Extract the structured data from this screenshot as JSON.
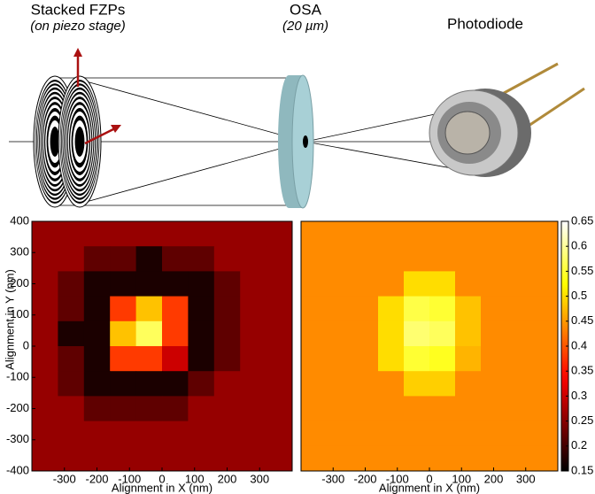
{
  "diagram": {
    "fzp_label": "Stacked FZPs",
    "fzp_note": "(on piezo stage)",
    "osa_label": "OSA",
    "osa_note": "(20 µm)",
    "detector_label": "Photodiode"
  },
  "chart_data": [
    {
      "type": "heatmap",
      "colormap": "hot",
      "clim": [
        0.15,
        0.65
      ],
      "xlabel": "Alignment in X (nm)",
      "ylabel": "Alignment in Y (nm)",
      "xlim": [
        -400,
        400
      ],
      "ylim": [
        -400,
        400
      ],
      "xticks": [
        -300,
        -200,
        -100,
        0,
        100,
        200,
        300
      ],
      "yticks": [
        -400,
        -300,
        -200,
        -100,
        0,
        100,
        200,
        300,
        400
      ],
      "x": [
        -360,
        -280,
        -200,
        -120,
        -40,
        40,
        120,
        200,
        280,
        360
      ],
      "y": [
        360,
        280,
        200,
        120,
        40,
        -40,
        -120,
        -200,
        -280,
        -360
      ],
      "z": [
        [
          0.26,
          0.26,
          0.26,
          0.26,
          0.26,
          0.26,
          0.26,
          0.26,
          0.26,
          0.26
        ],
        [
          0.26,
          0.26,
          0.22,
          0.22,
          0.17,
          0.22,
          0.22,
          0.26,
          0.26,
          0.26
        ],
        [
          0.26,
          0.22,
          0.17,
          0.17,
          0.17,
          0.17,
          0.17,
          0.22,
          0.26,
          0.26
        ],
        [
          0.26,
          0.22,
          0.17,
          0.38,
          0.48,
          0.38,
          0.17,
          0.22,
          0.26,
          0.26
        ],
        [
          0.26,
          0.17,
          0.17,
          0.48,
          0.57,
          0.38,
          0.17,
          0.22,
          0.26,
          0.26
        ],
        [
          0.26,
          0.22,
          0.17,
          0.38,
          0.38,
          0.3,
          0.17,
          0.22,
          0.26,
          0.26
        ],
        [
          0.26,
          0.22,
          0.17,
          0.17,
          0.17,
          0.17,
          0.22,
          0.26,
          0.26,
          0.26
        ],
        [
          0.26,
          0.26,
          0.22,
          0.22,
          0.22,
          0.22,
          0.26,
          0.26,
          0.26,
          0.26
        ],
        [
          0.26,
          0.26,
          0.26,
          0.26,
          0.26,
          0.26,
          0.26,
          0.26,
          0.26,
          0.26
        ],
        [
          0.26,
          0.26,
          0.26,
          0.26,
          0.26,
          0.26,
          0.26,
          0.26,
          0.26,
          0.26
        ]
      ]
    },
    {
      "type": "heatmap",
      "colormap": "hot",
      "clim": [
        0.15,
        0.65
      ],
      "xlabel": "Alignment in X (nm)",
      "xlim": [
        -400,
        400
      ],
      "ylim": [
        -400,
        400
      ],
      "xticks": [
        -300,
        -200,
        -100,
        0,
        100,
        200,
        300
      ],
      "colorbar_ticks": [
        0.15,
        0.2,
        0.25,
        0.3,
        0.35,
        0.4,
        0.45,
        0.5,
        0.55,
        0.6,
        0.65
      ],
      "x": [
        -360,
        -280,
        -200,
        -120,
        -40,
        40,
        120,
        200,
        280,
        360
      ],
      "y": [
        360,
        280,
        200,
        120,
        40,
        -40,
        -120,
        -200,
        -280,
        -360
      ],
      "z": [
        [
          0.44,
          0.44,
          0.44,
          0.44,
          0.44,
          0.44,
          0.44,
          0.44,
          0.44,
          0.44
        ],
        [
          0.44,
          0.44,
          0.44,
          0.44,
          0.44,
          0.44,
          0.44,
          0.44,
          0.44,
          0.44
        ],
        [
          0.44,
          0.44,
          0.44,
          0.44,
          0.5,
          0.5,
          0.44,
          0.44,
          0.44,
          0.44
        ],
        [
          0.44,
          0.44,
          0.44,
          0.5,
          0.56,
          0.55,
          0.48,
          0.44,
          0.44,
          0.44
        ],
        [
          0.44,
          0.44,
          0.44,
          0.5,
          0.58,
          0.57,
          0.48,
          0.44,
          0.44,
          0.44
        ],
        [
          0.44,
          0.44,
          0.44,
          0.5,
          0.55,
          0.54,
          0.47,
          0.44,
          0.44,
          0.44
        ],
        [
          0.44,
          0.44,
          0.44,
          0.44,
          0.49,
          0.49,
          0.44,
          0.44,
          0.44,
          0.44
        ],
        [
          0.44,
          0.44,
          0.44,
          0.44,
          0.44,
          0.44,
          0.44,
          0.44,
          0.44,
          0.44
        ],
        [
          0.44,
          0.44,
          0.44,
          0.44,
          0.44,
          0.44,
          0.44,
          0.44,
          0.44,
          0.44
        ],
        [
          0.44,
          0.44,
          0.44,
          0.44,
          0.44,
          0.44,
          0.44,
          0.44,
          0.44,
          0.44
        ]
      ]
    }
  ]
}
